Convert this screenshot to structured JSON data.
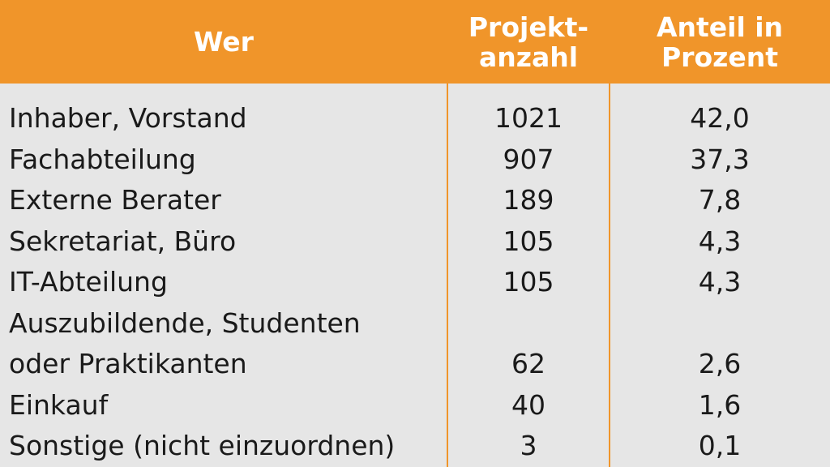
{
  "table": {
    "headers": {
      "wer": "Wer",
      "anzahl": "Projekt-\nanzahl",
      "anteil": "Anteil in\nProzent"
    },
    "rows": [
      {
        "wer": "Inhaber, Vorstand",
        "anzahl": "1021",
        "anteil": "42,0"
      },
      {
        "wer": "Fachabteilung",
        "anzahl": "907",
        "anteil": "37,3"
      },
      {
        "wer": "Externe Berater",
        "anzahl": "189",
        "anteil": "7,8"
      },
      {
        "wer": "Sekretariat, Büro",
        "anzahl": "105",
        "anteil": "4,3"
      },
      {
        "wer": "IT-Abteilung",
        "anzahl": "105",
        "anteil": "4,3"
      },
      {
        "wer": "Auszubildende, Studenten\noder Praktikanten",
        "anzahl": "62",
        "anteil": "2,6"
      },
      {
        "wer": "Einkauf",
        "anzahl": "40",
        "anteil": "1,6"
      },
      {
        "wer": "Sonstige (nicht einzuordnen)",
        "anzahl": "3",
        "anteil": "0,1"
      }
    ]
  },
  "colors": {
    "header_bg": "#f0952a",
    "header_text": "#ffffff",
    "body_bg": "#e6e6e6",
    "body_text": "#1a1a1a"
  }
}
